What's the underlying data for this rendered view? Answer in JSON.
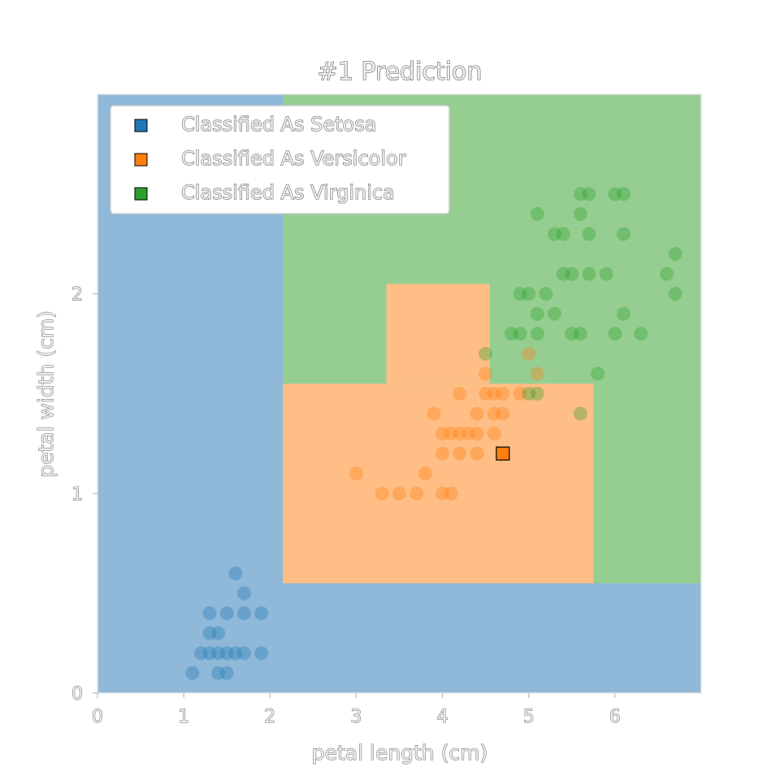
{
  "chart_data": {
    "type": "scatter",
    "title": "#1 Prediction",
    "xlabel": "petal length (cm)",
    "ylabel": "petal width (cm)",
    "xlim": [
      0,
      7
    ],
    "ylim": [
      0,
      3
    ],
    "xticks": [
      "0",
      "1",
      "2",
      "3",
      "4",
      "5",
      "6"
    ],
    "yticks": [
      "0",
      "1",
      "2"
    ],
    "grid": false,
    "legend_position": "top-left",
    "classes": [
      {
        "name": "Setosa",
        "color": "#1f77b4",
        "region_color": "#8fb8d9",
        "legend": "Classified As Setosa"
      },
      {
        "name": "Versicolor",
        "color": "#ff7f0e",
        "region_color": "#ffbe85",
        "legend": "Classified As Versicolor"
      },
      {
        "name": "Virginica",
        "color": "#2ca02c",
        "region_color": "#96ce92",
        "legend": "Classified As Virginica"
      }
    ],
    "decision_regions": [
      {
        "class": "Setosa",
        "x": [
          0,
          7
        ],
        "y": [
          0,
          3
        ]
      },
      {
        "class": "Virginica",
        "x": [
          2.15,
          7
        ],
        "y": [
          0.55,
          3
        ]
      },
      {
        "class": "Versicolor",
        "x": [
          2.15,
          5.75
        ],
        "y": [
          0.55,
          1.55
        ]
      },
      {
        "class": "Versicolor",
        "x": [
          3.35,
          4.55
        ],
        "y": [
          1.55,
          2.05
        ]
      }
    ],
    "series": [
      {
        "name": "Setosa",
        "points": [
          [
            1.1,
            0.1
          ],
          [
            1.4,
            0.1
          ],
          [
            1.5,
            0.1
          ],
          [
            1.2,
            0.2
          ],
          [
            1.3,
            0.2
          ],
          [
            1.4,
            0.2
          ],
          [
            1.5,
            0.2
          ],
          [
            1.6,
            0.2
          ],
          [
            1.7,
            0.2
          ],
          [
            1.9,
            0.2
          ],
          [
            1.3,
            0.3
          ],
          [
            1.4,
            0.3
          ],
          [
            1.3,
            0.4
          ],
          [
            1.5,
            0.4
          ],
          [
            1.7,
            0.4
          ],
          [
            1.9,
            0.4
          ],
          [
            1.7,
            0.5
          ],
          [
            1.6,
            0.6
          ]
        ]
      },
      {
        "name": "Versicolor",
        "points": [
          [
            3.3,
            1.0
          ],
          [
            3.5,
            1.0
          ],
          [
            3.7,
            1.0
          ],
          [
            4.0,
            1.0
          ],
          [
            4.1,
            1.0
          ],
          [
            3.0,
            1.1
          ],
          [
            3.8,
            1.1
          ],
          [
            4.0,
            1.2
          ],
          [
            4.2,
            1.2
          ],
          [
            4.4,
            1.2
          ],
          [
            4.0,
            1.3
          ],
          [
            4.1,
            1.3
          ],
          [
            4.2,
            1.3
          ],
          [
            4.3,
            1.3
          ],
          [
            4.4,
            1.3
          ],
          [
            4.6,
            1.3
          ],
          [
            3.9,
            1.4
          ],
          [
            4.4,
            1.4
          ],
          [
            4.6,
            1.4
          ],
          [
            4.7,
            1.4
          ],
          [
            4.2,
            1.5
          ],
          [
            4.5,
            1.5
          ],
          [
            4.6,
            1.5
          ],
          [
            4.7,
            1.5
          ],
          [
            4.9,
            1.5
          ],
          [
            4.5,
            1.6
          ],
          [
            5.0,
            1.7
          ],
          [
            5.1,
            1.6
          ]
        ]
      },
      {
        "name": "Virginica",
        "points": [
          [
            4.5,
            1.7
          ],
          [
            4.8,
            1.8
          ],
          [
            4.9,
            1.8
          ],
          [
            5.1,
            1.8
          ],
          [
            5.5,
            1.8
          ],
          [
            5.6,
            1.8
          ],
          [
            6.0,
            1.8
          ],
          [
            6.3,
            1.8
          ],
          [
            5.8,
            1.6
          ],
          [
            5.0,
            1.5
          ],
          [
            5.1,
            1.5
          ],
          [
            5.6,
            1.4
          ],
          [
            5.1,
            1.9
          ],
          [
            5.3,
            1.9
          ],
          [
            6.1,
            1.9
          ],
          [
            4.9,
            2.0
          ],
          [
            5.0,
            2.0
          ],
          [
            5.2,
            2.0
          ],
          [
            6.7,
            2.0
          ],
          [
            5.4,
            2.1
          ],
          [
            5.5,
            2.1
          ],
          [
            5.7,
            2.1
          ],
          [
            5.9,
            2.1
          ],
          [
            6.6,
            2.1
          ],
          [
            6.7,
            2.2
          ],
          [
            5.3,
            2.3
          ],
          [
            5.4,
            2.3
          ],
          [
            5.7,
            2.3
          ],
          [
            6.1,
            2.3
          ],
          [
            5.1,
            2.4
          ],
          [
            5.6,
            2.4
          ],
          [
            5.6,
            2.5
          ],
          [
            6.0,
            2.5
          ],
          [
            6.1,
            2.5
          ],
          [
            5.7,
            2.5
          ]
        ]
      }
    ],
    "highlighted_point": {
      "x": 4.7,
      "y": 1.2,
      "class": "Versicolor"
    }
  }
}
